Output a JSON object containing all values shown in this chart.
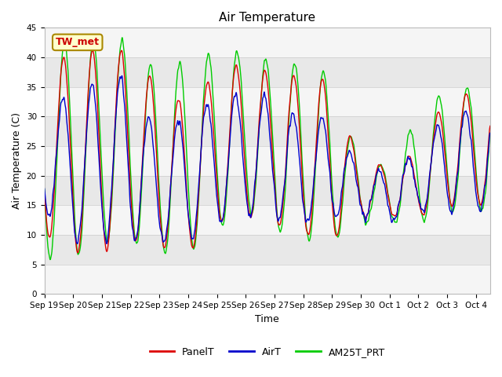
{
  "title": "Air Temperature",
  "xlabel": "Time",
  "ylabel": "Air Temperature (C)",
  "ylim": [
    0,
    45
  ],
  "yticks": [
    0,
    5,
    10,
    15,
    20,
    25,
    30,
    35,
    40,
    45
  ],
  "annotation_text": "TW_met",
  "annotation_box_facecolor": "#ffffcc",
  "annotation_box_edgecolor": "#aa8800",
  "annotation_text_color": "#cc0000",
  "color_panelT": "#dd0000",
  "color_airT": "#0000cc",
  "color_am25T": "#00cc00",
  "label_panelT": "PanelT",
  "label_airT": "AirT",
  "label_am25T": "AM25T_PRT",
  "axes_bg_color": "#e8e8e8",
  "band_color_light": "#e8e8e8",
  "band_color_white": "#f5f5f5",
  "line_width": 1.0,
  "x_tick_labels": [
    "Sep 19",
    "Sep 20",
    "Sep 21",
    "Sep 22",
    "Sep 23",
    "Sep 24",
    "Sep 25",
    "Sep 26",
    "Sep 27",
    "Sep 28",
    "Sep 29",
    "Sep 30",
    "Oct 1",
    "Oct 2",
    "Oct 3",
    "Oct 4"
  ],
  "days_total": 15.5
}
